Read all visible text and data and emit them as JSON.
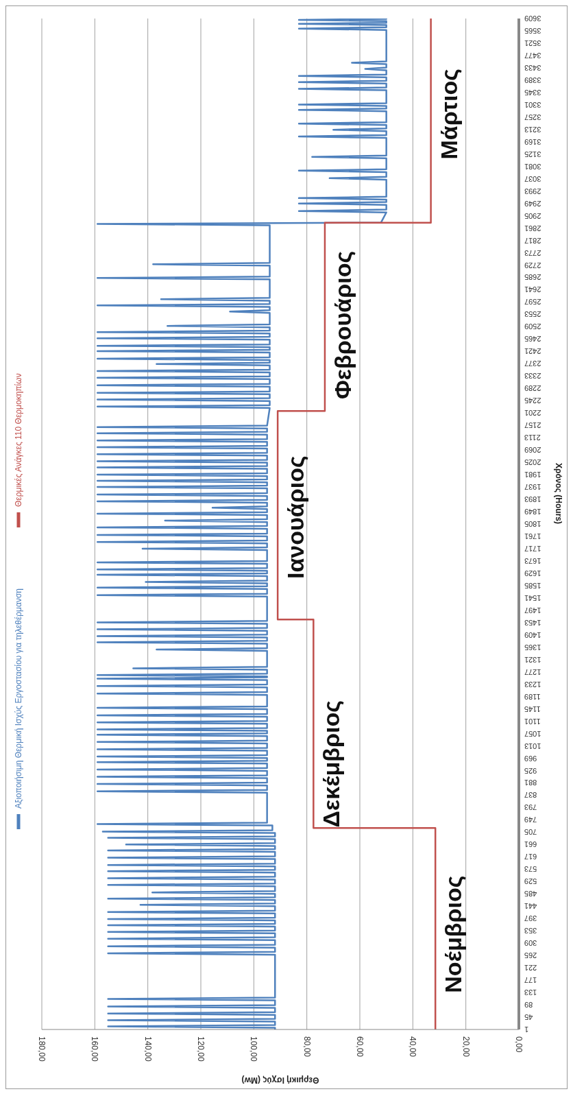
{
  "chart_data": {
    "type": "line",
    "xlabel": "Θερμική Ισχύς (Mw)",
    "ylabel": "Χρόνος (Hours)",
    "ylim": [
      1,
      3609
    ],
    "yticks": [
      1,
      45,
      89,
      133,
      177,
      221,
      265,
      309,
      353,
      397,
      441,
      485,
      529,
      573,
      617,
      661,
      705,
      749,
      793,
      837,
      881,
      925,
      969,
      1013,
      1057,
      1101,
      1145,
      1189,
      1233,
      1277,
      1321,
      1365,
      1409,
      1453,
      1497,
      1541,
      1585,
      1629,
      1673,
      1717,
      1761,
      1805,
      1849,
      1893,
      1937,
      1981,
      2025,
      2069,
      2113,
      2157,
      2201,
      2245,
      2289,
      2333,
      2377,
      2421,
      2465,
      2509,
      2553,
      2597,
      2641,
      2685,
      2729,
      2773,
      2817,
      2861,
      2905,
      2949,
      2993,
      3037,
      3081,
      3125,
      3169,
      3213,
      3257,
      3301,
      3345,
      3389,
      3433,
      3477,
      3521,
      3565,
      3609
    ],
    "xlim": [
      180,
      0
    ],
    "xticks": [
      {
        "value": 0,
        "label": "0,00"
      },
      {
        "value": 20,
        "label": "20,00"
      },
      {
        "value": 40,
        "label": "40,00"
      },
      {
        "value": 60,
        "label": "60,00"
      },
      {
        "value": 80,
        "label": "80,00"
      },
      {
        "value": 100,
        "label": "100,00"
      },
      {
        "value": 120,
        "label": "120,00"
      },
      {
        "value": 140,
        "label": "140,00"
      },
      {
        "value": 160,
        "label": "160,00"
      },
      {
        "value": 180,
        "label": "180,00"
      }
    ],
    "grid": "x",
    "legend": "left",
    "series": [
      {
        "name": "Αξιοποιήσιμη Θερμική Ισχύς Εργοστασίου για τηλεθέρμανση",
        "color": "#4f81bd",
        "type": "line",
        "values": [
          1,
          7,
          12,
          17,
          29,
          34,
          39,
          53,
          58,
          63,
          78,
          83,
          88,
          105,
          110,
          115,
          268,
          273,
          278,
          293,
          298,
          303,
          320,
          325,
          330,
          344,
          349,
          354,
          368,
          373,
          378,
          390,
          395,
          400,
          415,
          420,
          425,
          441,
          446,
          451,
          463,
          468,
          473,
          485,
          490,
          495,
          512,
          517,
          522,
          536,
          541,
          546,
          561,
          566,
          571,
          583,
          588,
          593,
          609,
          614,
          619,
          635,
          640,
          645,
          656,
          661,
          666,
          680,
          685,
          690,
          702,
          707,
          712,
          729,
          734,
          739,
          846,
          851,
          856,
          872,
          877,
          882,
          898,
          903,
          908,
          924,
          929,
          934,
          950,
          955,
          960,
          970,
          975,
          980,
          996,
          1001,
          1006,
          1022,
          1027,
          1032,
          1048,
          1053,
          1058,
          1067,
          1072,
          1077,
          1092,
          1097,
          1102,
          1117,
          1122,
          1127,
          1144,
          1149,
          1154,
          1195,
          1200,
          1205,
          1222,
          1227,
          1232,
          1248,
          1253,
          1258,
          1261,
          1266,
          1271,
          1285,
          1290,
          1295,
          1352,
          1357,
          1362,
          1378,
          1383,
          1388,
          1400,
          1405,
          1410,
          1424,
          1429,
          1434,
          1449,
          1454,
          1459,
          1546,
          1551,
          1556,
          1573,
          1578,
          1583,
          1593,
          1598,
          1603,
          1619,
          1624,
          1629,
          1638,
          1643,
          1648,
          1663,
          1668,
          1673,
          1712,
          1717,
          1722,
          1736,
          1741,
          1746,
          1761,
          1766,
          1771,
          1788,
          1793,
          1798,
          1812,
          1817,
          1822,
          1837,
          1842,
          1847,
          1858,
          1863,
          1868,
          1881,
          1886,
          1891,
          1905,
          1910,
          1915,
          1932,
          1937,
          1942,
          1954,
          1959,
          1964,
          1976,
          1981,
          1986,
          2002,
          2007,
          2012,
          2024,
          2029,
          2034,
          2049,
          2054,
          2059,
          2074,
          2079,
          2084,
          2098,
          2103,
          2108,
          2124,
          2129,
          2134,
          2146,
          2151,
          2156,
          2219,
          2224,
          2229,
          2244,
          2249,
          2254,
          2268,
          2273,
          2278,
          2295,
          2300,
          2305,
          2322,
          2327,
          2332,
          2346,
          2351,
          2356,
          2371,
          2376,
          2381,
          2390,
          2395,
          2400,
          2417,
          2422,
          2427,
          2436,
          2441,
          2446,
          2463,
          2468,
          2473,
          2485,
          2490,
          2495,
          2507,
          2512,
          2517,
          2558,
          2563,
          2568,
          2580,
          2585,
          2590,
          2602,
          2607,
          2612,
          2678,
          2683,
          2688,
          2727,
          2732,
          2737,
          2871,
          2876,
          2881,
          2917,
          2922,
          2927,
          2944,
          2949,
          2954,
          2963,
          2968,
          2973,
          3034,
          3039,
          3044,
          3061,
          3066,
          3071,
          3110,
          3115,
          3120,
          3183,
          3188,
          3193,
          3207,
          3212,
          3217,
          3229,
          3234,
          3239,
          3278,
          3283,
          3288,
          3297,
          3302,
          3307,
          3353,
          3358,
          3363,
          3377,
          3382,
          3387,
          3399,
          3404,
          3409,
          3424,
          3429,
          3434,
          3446,
          3451,
          3456,
          3568,
          3573,
          3578,
          3586,
          3590,
          3594,
          3600,
          3604,
          3608,
          3609
        ],
        "x": [
          92,
          92,
          155,
          92,
          92,
          155,
          92,
          92,
          155,
          92,
          92,
          155,
          92,
          92,
          155,
          92,
          92,
          155,
          92,
          92,
          155,
          92,
          92,
          155,
          92,
          92,
          155,
          92,
          92,
          155,
          92,
          92,
          155,
          92,
          92,
          155,
          92,
          92,
          142.8,
          92,
          92,
          155,
          92,
          92,
          138.3,
          92,
          92,
          155,
          92,
          92,
          155,
          92,
          92,
          155,
          92,
          92,
          155,
          92,
          92,
          155,
          92,
          92,
          155,
          92,
          92,
          148.2,
          92,
          92,
          155,
          92,
          92,
          157,
          93,
          93,
          159,
          95,
          95,
          159,
          95,
          95,
          159,
          95,
          95,
          159,
          95,
          95,
          159,
          95,
          95,
          159,
          95,
          95,
          159,
          95,
          95,
          159,
          95,
          95,
          159,
          95,
          95,
          159,
          95,
          95,
          159,
          95,
          95,
          159,
          95,
          95,
          159,
          95,
          95,
          159,
          95,
          95,
          159,
          95,
          95,
          159,
          95,
          95,
          159,
          95,
          95,
          159,
          95,
          95,
          145.5,
          95,
          95,
          136.7,
          95,
          95,
          159,
          95,
          95,
          159,
          95,
          95,
          159,
          95,
          95,
          159,
          95,
          95,
          159,
          95,
          95,
          159,
          95,
          95,
          140.8,
          95,
          95,
          159,
          95,
          95,
          159,
          95,
          95,
          159,
          95,
          95,
          142,
          95,
          95,
          159,
          95,
          95,
          159,
          95,
          95,
          159,
          95,
          95,
          133.5,
          95,
          95,
          159,
          95,
          95,
          115.6,
          95,
          95,
          159,
          95,
          95,
          159,
          95,
          95,
          159,
          95,
          95,
          159,
          95,
          95,
          159,
          95,
          95,
          159,
          95,
          95,
          159,
          95,
          95,
          159,
          95,
          95,
          159,
          95,
          95,
          159,
          95,
          95,
          159,
          95,
          95,
          159,
          95,
          94,
          159,
          94,
          94,
          159,
          94,
          94,
          159,
          94,
          94,
          159,
          94,
          94,
          159,
          94,
          94,
          159,
          94,
          94,
          136.7,
          94,
          94,
          159,
          94,
          94,
          159,
          94,
          94,
          159,
          94,
          94,
          159,
          94,
          94,
          159,
          94,
          94,
          132.6,
          94,
          94,
          109,
          94,
          94,
          159,
          94,
          94,
          135,
          94,
          94,
          159,
          94,
          94,
          138,
          94,
          94,
          159,
          52,
          50,
          83,
          50,
          50,
          83,
          50,
          50,
          83,
          50,
          50,
          71.4,
          50,
          50,
          83,
          50,
          50,
          78,
          50,
          50,
          83,
          50,
          50,
          70,
          50,
          50,
          83,
          50,
          50,
          83,
          50,
          50,
          83,
          50,
          50,
          83,
          50,
          50,
          83,
          50,
          50,
          83,
          50,
          50,
          58,
          50,
          50,
          63,
          50,
          50,
          83,
          50,
          50,
          83,
          50,
          50,
          83,
          50,
          52
        ]
      },
      {
        "name": "Θερμικές Ανάγκες 110 Θερμοκηπίων",
        "color": "#c0504d",
        "type": "step",
        "x": [
          31.5,
          77.5,
          91,
          73.2,
          33.2,
          33.2
        ],
        "values": [
          1,
          720,
          1464,
          2208,
          2880,
          3609
        ]
      }
    ],
    "annotations": [
      {
        "text": "Νοέμβριος",
        "x": 31.5,
        "y": 341
      },
      {
        "text": "Δεκέμβριος",
        "x": 77.5,
        "y": 949
      },
      {
        "text": "Ιανουάριος",
        "x": 91,
        "y": 1829
      },
      {
        "text": "Φεβρουάριος",
        "x": 73.2,
        "y": 2515
      },
      {
        "text": "Μάρτιος",
        "x": 33.2,
        "y": 3268
      }
    ]
  }
}
